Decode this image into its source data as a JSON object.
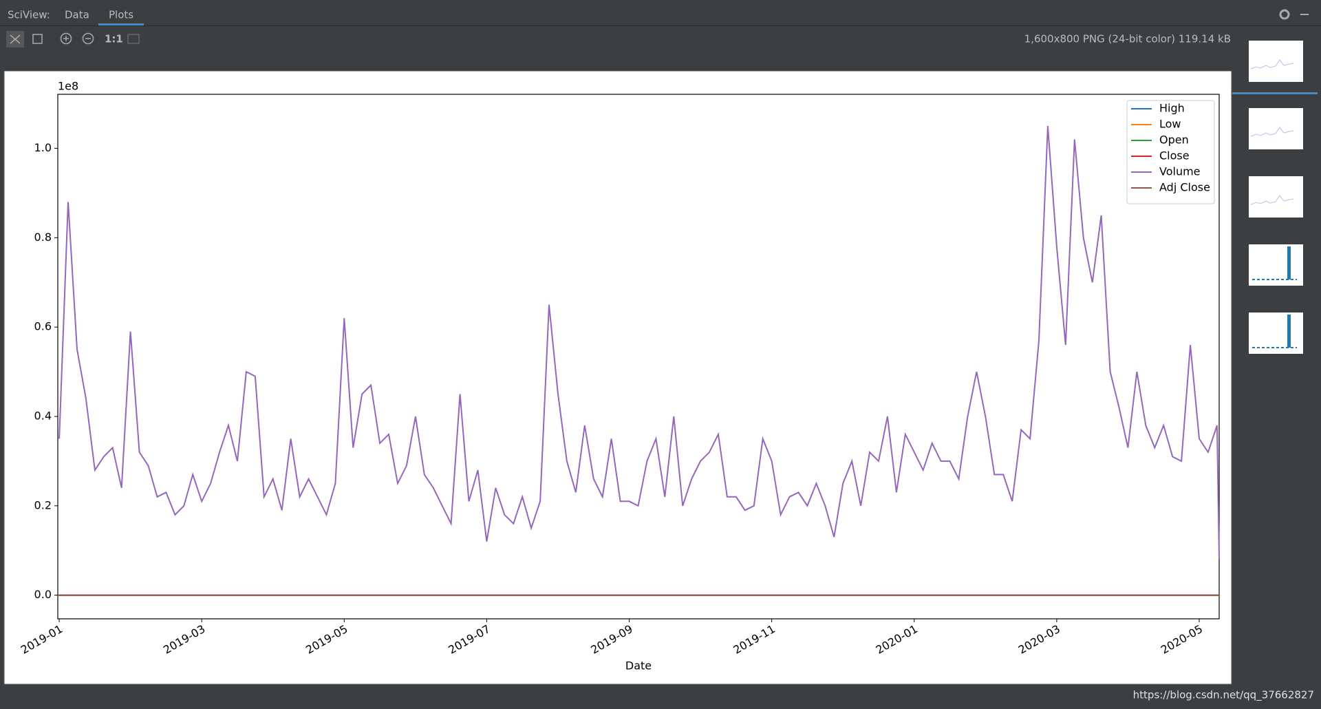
{
  "ui": {
    "tool_window": "SciView:",
    "tabs": [
      "Data",
      "Plots"
    ],
    "zoom_label": "1:1",
    "image_info": "1,600x800 PNG (24-bit color) 119.14 kB",
    "watermark": "https://blog.csdn.net/qq_37662827"
  },
  "chart_data": {
    "type": "line",
    "xlabel": "Date",
    "offset_text": "1e8",
    "xlim": [
      -0.02,
      16.28
    ],
    "xticks": [
      {
        "value": 0,
        "label": "2019-01"
      },
      {
        "value": 2,
        "label": "2019-03"
      },
      {
        "value": 4,
        "label": "2019-05"
      },
      {
        "value": 6,
        "label": "2019-07"
      },
      {
        "value": 8,
        "label": "2019-09"
      },
      {
        "value": 10,
        "label": "2019-11"
      },
      {
        "value": 12,
        "label": "2020-01"
      },
      {
        "value": 14,
        "label": "2020-03"
      },
      {
        "value": 16,
        "label": "2020-05"
      }
    ],
    "ylim": [
      -0.053,
      1.121
    ],
    "yticks": [
      {
        "value": 0,
        "label": "0.0"
      },
      0.2,
      0.4,
      0.6,
      0.8,
      {
        "value": 1,
        "label": "1.0"
      }
    ],
    "legend": "upper right",
    "x": [
      0,
      0.125,
      0.25,
      0.375,
      0.5,
      0.625,
      0.75,
      0.875,
      1,
      1.125,
      1.25,
      1.375,
      1.5,
      1.625,
      1.75,
      1.875,
      2,
      2.125,
      2.25,
      2.375,
      2.5,
      2.625,
      2.75,
      2.875,
      3,
      3.125,
      3.25,
      3.375,
      3.5,
      3.625,
      3.75,
      3.875,
      4,
      4.125,
      4.25,
      4.375,
      4.5,
      4.625,
      4.75,
      4.875,
      5,
      5.125,
      5.25,
      5.375,
      5.5,
      5.625,
      5.75,
      5.875,
      6,
      6.125,
      6.25,
      6.375,
      6.5,
      6.625,
      6.75,
      6.875,
      7,
      7.125,
      7.25,
      7.375,
      7.5,
      7.625,
      7.75,
      7.875,
      8,
      8.125,
      8.25,
      8.375,
      8.5,
      8.625,
      8.75,
      8.875,
      9,
      9.125,
      9.25,
      9.375,
      9.5,
      9.625,
      9.75,
      9.875,
      10,
      10.125,
      10.25,
      10.375,
      10.5,
      10.625,
      10.75,
      10.875,
      11,
      11.125,
      11.25,
      11.375,
      11.5,
      11.625,
      11.75,
      11.875,
      12,
      12.125,
      12.25,
      12.375,
      12.5,
      12.625,
      12.75,
      12.875,
      13,
      13.125,
      13.25,
      13.375,
      13.5,
      13.625,
      13.75,
      13.875,
      14,
      14.125,
      14.25,
      14.375,
      14.5,
      14.625,
      14.75,
      14.875,
      15,
      15.125,
      15.25,
      15.375,
      15.5,
      15.625,
      15.75,
      15.875,
      16,
      16.125,
      16.25,
      16.28
    ],
    "series": [
      {
        "name": "High",
        "color": "#1f77b4",
        "x": [
          -0.02,
          16.28
        ],
        "values": [
          0,
          0
        ]
      },
      {
        "name": "Low",
        "color": "#ff7f0e",
        "x": [
          -0.02,
          16.28
        ],
        "values": [
          0,
          0
        ]
      },
      {
        "name": "Open",
        "color": "#2ca02c",
        "x": [
          -0.02,
          16.28
        ],
        "values": [
          0,
          0
        ]
      },
      {
        "name": "Close",
        "color": "#d62728",
        "x": [
          -0.02,
          16.28
        ],
        "values": [
          0,
          0
        ]
      },
      {
        "name": "Volume",
        "color": "#9467bd",
        "values": [
          0.35,
          0.88,
          0.55,
          0.44,
          0.28,
          0.31,
          0.33,
          0.24,
          0.59,
          0.32,
          0.29,
          0.22,
          0.23,
          0.18,
          0.2,
          0.27,
          0.21,
          0.25,
          0.32,
          0.38,
          0.3,
          0.5,
          0.49,
          0.22,
          0.26,
          0.19,
          0.35,
          0.22,
          0.26,
          0.22,
          0.18,
          0.25,
          0.62,
          0.33,
          0.45,
          0.47,
          0.34,
          0.36,
          0.25,
          0.29,
          0.4,
          0.27,
          0.24,
          0.2,
          0.16,
          0.45,
          0.21,
          0.28,
          0.12,
          0.24,
          0.18,
          0.16,
          0.22,
          0.15,
          0.21,
          0.65,
          0.45,
          0.3,
          0.23,
          0.38,
          0.26,
          0.22,
          0.35,
          0.21,
          0.21,
          0.2,
          0.3,
          0.35,
          0.22,
          0.4,
          0.2,
          0.26,
          0.3,
          0.32,
          0.36,
          0.22,
          0.22,
          0.19,
          0.2,
          0.35,
          0.3,
          0.18,
          0.22,
          0.23,
          0.2,
          0.25,
          0.2,
          0.13,
          0.25,
          0.3,
          0.2,
          0.32,
          0.3,
          0.4,
          0.23,
          0.36,
          0.32,
          0.28,
          0.34,
          0.3,
          0.3,
          0.26,
          0.4,
          0.5,
          0.4,
          0.27,
          0.27,
          0.21,
          0.37,
          0.35,
          0.57,
          1.05,
          0.78,
          0.56,
          1.02,
          0.8,
          0.7,
          0.85,
          0.5,
          0.42,
          0.33,
          0.5,
          0.38,
          0.33,
          0.38,
          0.31,
          0.3,
          0.56,
          0.35,
          0.32,
          0.38,
          0.08
        ]
      },
      {
        "name": "Adj Close",
        "color": "#8c564b",
        "x": [
          -0.02,
          16.28
        ],
        "values": [
          0,
          0
        ]
      }
    ]
  }
}
